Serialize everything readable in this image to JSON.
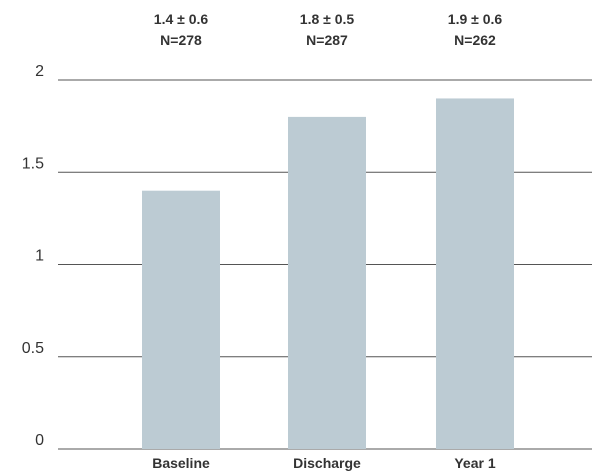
{
  "chart_data": {
    "type": "bar",
    "title": "",
    "xlabel": "",
    "ylabel": "",
    "categories": [
      "Baseline",
      "Discharge",
      "Year 1"
    ],
    "values": [
      1.4,
      1.8,
      1.9
    ],
    "data_labels": [
      {
        "value_text": "1.4 ± 0.6",
        "n_text": "N=278"
      },
      {
        "value_text": "1.8 ± 0.5",
        "n_text": "N=287"
      },
      {
        "value_text": "1.9 ± 0.6",
        "n_text": "N=262"
      }
    ],
    "ylim": [
      0,
      2
    ],
    "yticks": [
      "0",
      "0.5",
      "1",
      "1.5",
      "2"
    ],
    "grid": true,
    "legend": "none",
    "colors": {
      "bar": "#bccbd3",
      "grid": "#555555",
      "text": "#333333"
    }
  }
}
